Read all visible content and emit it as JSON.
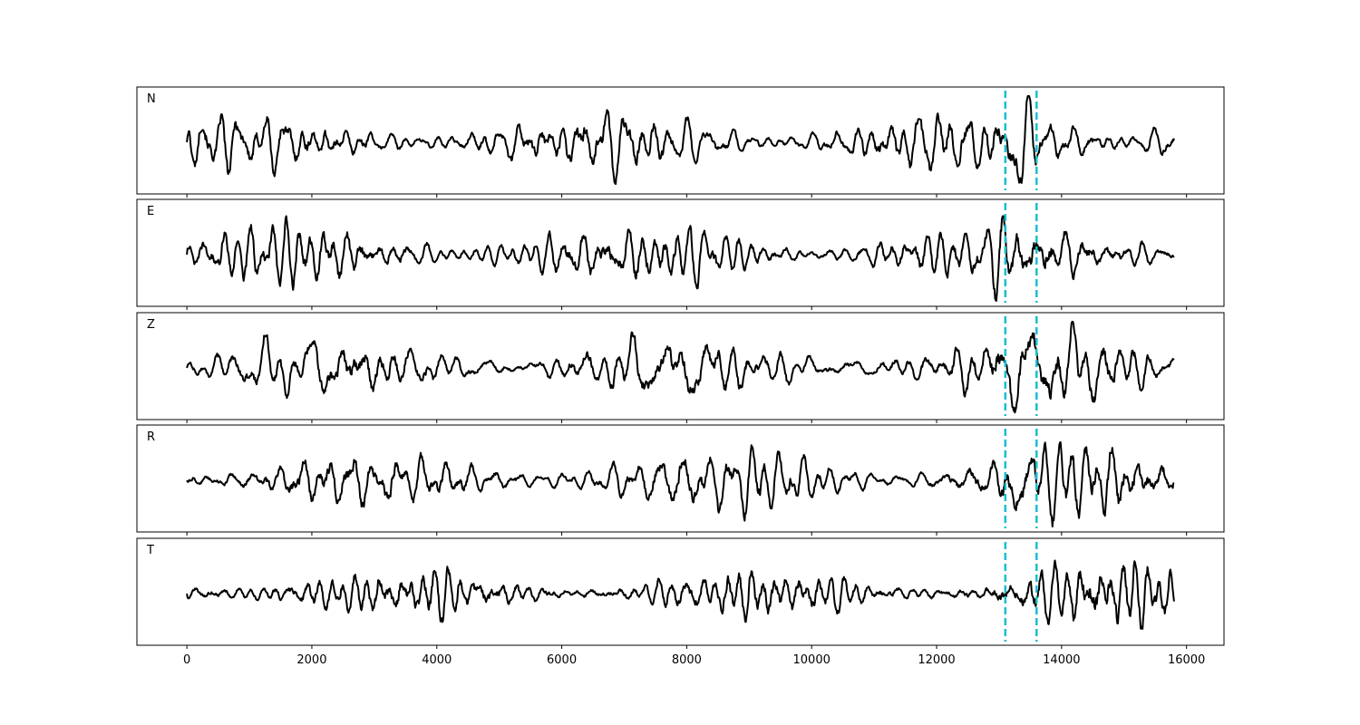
{
  "chart_data": {
    "type": "line",
    "panels": [
      "N",
      "E",
      "Z",
      "R",
      "T"
    ],
    "x_range": [
      0,
      15800
    ],
    "xlim": [
      -800,
      16600
    ],
    "x_ticks": [
      0,
      2000,
      4000,
      6000,
      8000,
      10000,
      12000,
      14000,
      16000
    ],
    "markers": [
      13100,
      13600
    ],
    "marker_color": "#17becf",
    "trace_color": "#000000",
    "sharex": true,
    "grid": false,
    "y_ticks_visible": false,
    "legend": "none"
  }
}
